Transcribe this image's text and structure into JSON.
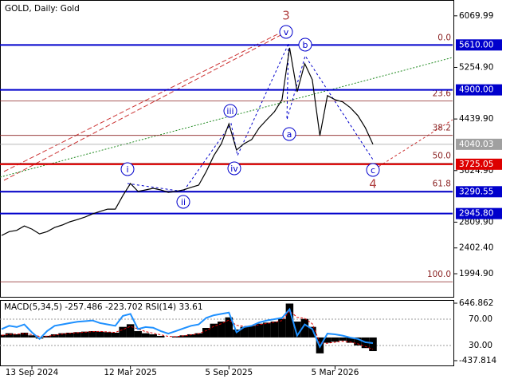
{
  "chart_data": {
    "type": "line",
    "title": "GOLD, Daily:  Gold",
    "categories": [
      null,
      null,
      null,
      null,
      "13 Sep 2024",
      null,
      null,
      null,
      null,
      null,
      null,
      null,
      null,
      null,
      null,
      null,
      null,
      "12 Mar 2025",
      null,
      null,
      null,
      null,
      null,
      null,
      null,
      null,
      null,
      null,
      null,
      null,
      "5 Sep 2025",
      null,
      null,
      null,
      null,
      null,
      null,
      null,
      null,
      null,
      null,
      null,
      null,
      null,
      "5 Mar 2026",
      null,
      null,
      null,
      null,
      null
    ],
    "series": [
      {
        "name": "GOLD",
        "color": "#000000",
        "values": [
          2600,
          2660,
          2680,
          2750,
          2700,
          2625,
          2660,
          2725,
          2765,
          2815,
          2850,
          2890,
          2940,
          2980,
          3015,
          3015,
          3230,
          3420,
          3295,
          3320,
          3345,
          3320,
          3280,
          3295,
          3320,
          3360,
          3395,
          3610,
          3860,
          4050,
          4365,
          3950,
          4050,
          4115,
          4300,
          4430,
          4555,
          4745,
          5565,
          4870,
          5315,
          5060,
          4175,
          4810,
          4745,
          4710,
          4620,
          4495,
          4300,
          4040
        ]
      }
    ],
    "ylim": [
      1630,
      6320
    ],
    "yticks": [
      6069.99,
      {
        "value": 5254.9,
        "label": "5254.90"
      },
      {
        "value": 4439.9,
        "label": "4439.90"
      },
      {
        "value": 3624.9,
        "label": "3624.90"
      },
      {
        "value": 2809.9,
        "label": "2809.90"
      },
      {
        "value": 2402.4,
        "label": "2402.40"
      },
      {
        "value": 1994.9,
        "label": "1994.90"
      }
    ],
    "levels": [
      {
        "value": 5610,
        "label": "5610.00",
        "color": "#0000cc"
      },
      {
        "value": 4900,
        "label": "4900.00",
        "color": "#0000cc"
      },
      {
        "value": 3725.05,
        "label": "3725.05",
        "color": "#dd0000"
      },
      {
        "value": 3290.55,
        "label": "3290.55",
        "color": "#0000cc"
      },
      {
        "value": 2945.8,
        "label": "2945.80",
        "color": "#0000cc"
      }
    ],
    "current_price": {
      "value": 4040.03,
      "label": "4040.03",
      "color": "#a0a0a0"
    },
    "fibonacci": {
      "high": 5610,
      "low": 1868,
      "color": "#8b2323",
      "levels": [
        {
          "value": 0,
          "label": "0.0"
        },
        23.6,
        38.2,
        {
          "value": 50,
          "label": "50.0"
        },
        61.8,
        {
          "value": 100,
          "label": "100.0"
        }
      ]
    },
    "annotations": [
      "v",
      "b",
      "iii",
      "i",
      "iv",
      "ii",
      "a",
      "c",
      "3",
      "4"
    ],
    "indicator": {
      "title": "MACD(5,34,5) -257.486 -223.702 RSI(14) 33.61",
      "macd": {
        "color": "#000000",
        "values": [
          50,
          80,
          60,
          90,
          40,
          -20,
          30,
          60,
          80,
          90,
          100,
          110,
          120,
          110,
          100,
          90,
          200,
          250,
          120,
          80,
          60,
          30,
          0,
          20,
          40,
          60,
          80,
          180,
          260,
          300,
          380,
          150,
          200,
          220,
          260,
          280,
          300,
          350,
          640,
          300,
          350,
          200,
          -300,
          -100,
          -80,
          -60,
          -100,
          -150,
          -200,
          -257.486
        ]
      },
      "signal": {
        "color": "#dd0000",
        "values": [
          40,
          60,
          62,
          75,
          55,
          20,
          25,
          45,
          65,
          80,
          90,
          100,
          110,
          115,
          105,
          95,
          150,
          210,
          160,
          110,
          80,
          50,
          20,
          15,
          30,
          50,
          70,
          130,
          210,
          260,
          330,
          230,
          210,
          215,
          240,
          265,
          285,
          320,
          500,
          380,
          360,
          260,
          -100,
          -110,
          -90,
          -70,
          -85,
          -120,
          -170,
          -223.702
        ]
      },
      "rsi": {
        "color": "#1e90ff",
        "values": [
          55,
          60,
          58,
          62,
          50,
          40,
          52,
          60,
          62,
          64,
          66,
          67,
          68,
          64,
          62,
          60,
          75,
          78,
          55,
          58,
          57,
          52,
          48,
          52,
          56,
          60,
          62,
          72,
          76,
          78,
          80,
          50,
          58,
          60,
          65,
          68,
          70,
          72,
          85,
          45,
          62,
          55,
          28,
          48,
          47,
          45,
          42,
          40,
          35,
          33.61
        ]
      },
      "y2lim": [
        -437.814,
        646.862
      ],
      "y2ticks": [
        646.862,
        -437.814
      ],
      "rsi_lim": [
        0,
        100
      ],
      "rsi_ticks": [
        {
          "value": 70,
          "label": "70.00"
        },
        {
          "value": 30,
          "label": "30.00"
        }
      ]
    }
  }
}
